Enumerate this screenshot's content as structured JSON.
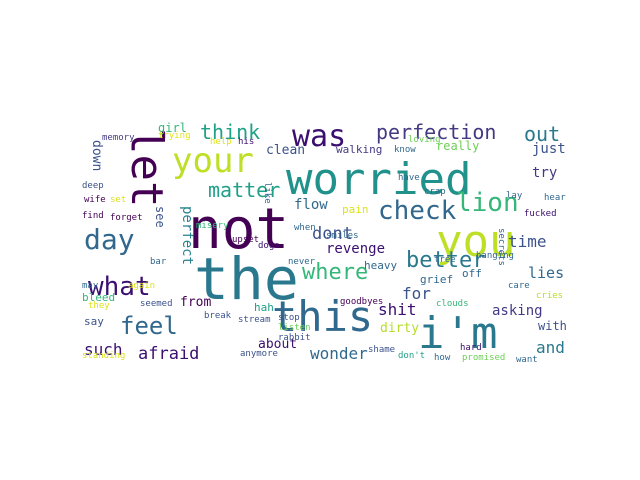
{
  "words": [
    {
      "text": "the",
      "color": "#2a788e"
    },
    {
      "text": "not",
      "color": "#440154"
    },
    {
      "text": "worried",
      "color": "#21918c"
    },
    {
      "text": "you",
      "color": "#bddf26"
    },
    {
      "text": "this",
      "color": "#31688e"
    },
    {
      "text": "i'm",
      "color": "#2a788e"
    },
    {
      "text": "your",
      "color": "#bddf26"
    },
    {
      "text": "let",
      "color": "#440154"
    },
    {
      "text": "was",
      "color": "#3b0f70"
    },
    {
      "text": "check",
      "color": "#31688e"
    },
    {
      "text": "day",
      "color": "#31688e"
    },
    {
      "text": "what",
      "color": "#3b0f70"
    },
    {
      "text": "where",
      "color": "#35b779"
    },
    {
      "text": "better",
      "color": "#2a788e"
    },
    {
      "text": "lion",
      "color": "#35b779"
    },
    {
      "text": "feel",
      "color": "#31688e"
    },
    {
      "text": "perfection",
      "color": "#443a83"
    },
    {
      "text": "think",
      "color": "#1fa187"
    },
    {
      "text": "out",
      "color": "#2a788e"
    },
    {
      "text": "matter",
      "color": "#1fa187"
    },
    {
      "text": "dont",
      "color": "#3b528b"
    },
    {
      "text": "time",
      "color": "#3b528b"
    },
    {
      "text": "shit",
      "color": "#3b0f70"
    },
    {
      "text": "afraid",
      "color": "#3b0f70"
    },
    {
      "text": "such",
      "color": "#3b0f70"
    },
    {
      "text": "wonder",
      "color": "#31688e"
    },
    {
      "text": "and",
      "color": "#2a788e"
    },
    {
      "text": "for",
      "color": "#3b528b"
    },
    {
      "text": "asking",
      "color": "#443a83"
    },
    {
      "text": "lies",
      "color": "#31688e"
    },
    {
      "text": "just",
      "color": "#3b528b"
    },
    {
      "text": "try",
      "color": "#443a83"
    },
    {
      "text": "revenge",
      "color": "#3b0f70"
    },
    {
      "text": "flow",
      "color": "#31688e"
    },
    {
      "text": "clean",
      "color": "#3b528b"
    },
    {
      "text": "from",
      "color": "#440154"
    },
    {
      "text": "about",
      "color": "#3b0f70"
    },
    {
      "text": "dirty",
      "color": "#b5de2b"
    },
    {
      "text": "with",
      "color": "#3b528b"
    },
    {
      "text": "really",
      "color": "#6ece58"
    },
    {
      "text": "walking",
      "color": "#443a83"
    },
    {
      "text": "perfect",
      "color": "#26828e"
    },
    {
      "text": "see",
      "color": "#3b528b"
    },
    {
      "text": "down",
      "color": "#3b528b"
    },
    {
      "text": "girl",
      "color": "#35b779"
    },
    {
      "text": "bleed",
      "color": "#35b779"
    },
    {
      "text": "say",
      "color": "#3b528b"
    },
    {
      "text": "pain",
      "color": "#dde318"
    },
    {
      "text": "heavy",
      "color": "#31688e"
    },
    {
      "text": "off",
      "color": "#31688e"
    },
    {
      "text": "grief",
      "color": "#31688e"
    },
    {
      "text": "hah",
      "color": "#1f9e89"
    },
    {
      "text": "memory",
      "color": "#443a83"
    },
    {
      "text": "trying",
      "color": "#dde318"
    },
    {
      "text": "help",
      "color": "#dde318"
    },
    {
      "text": "his",
      "color": "#3b0f70"
    },
    {
      "text": "loving",
      "color": "#6ece58"
    },
    {
      "text": "know",
      "color": "#31688e"
    },
    {
      "text": "deep",
      "color": "#3b528b"
    },
    {
      "text": "wife",
      "color": "#440154"
    },
    {
      "text": "set",
      "color": "#dde318"
    },
    {
      "text": "find",
      "color": "#440154"
    },
    {
      "text": "forget",
      "color": "#440154"
    },
    {
      "text": "misery",
      "color": "#35b779"
    },
    {
      "text": "upset",
      "color": "#440154"
    },
    {
      "text": "like",
      "color": "#31688e"
    },
    {
      "text": "have",
      "color": "#31688e"
    },
    {
      "text": "crap",
      "color": "#31688e"
    },
    {
      "text": "lay",
      "color": "#31688e"
    },
    {
      "text": "hear",
      "color": "#31688e"
    },
    {
      "text": "fucked",
      "color": "#3b0f70"
    },
    {
      "text": "when",
      "color": "#31688e"
    },
    {
      "text": "smiles",
      "color": "#31688e"
    },
    {
      "text": "dogs",
      "color": "#3b0f70"
    },
    {
      "text": "never",
      "color": "#31688e"
    },
    {
      "text": "bar",
      "color": "#31688e"
    },
    {
      "text": "may",
      "color": "#31688e"
    },
    {
      "text": "again",
      "color": "#dde318"
    },
    {
      "text": "they",
      "color": "#dde318"
    },
    {
      "text": "seemed",
      "color": "#3b528b"
    },
    {
      "text": "break",
      "color": "#3b528b"
    },
    {
      "text": "stream",
      "color": "#3b528b"
    },
    {
      "text": "stop",
      "color": "#3b528b"
    },
    {
      "text": "listen",
      "color": "#6ece58"
    },
    {
      "text": "rabbit",
      "color": "#3b528b"
    },
    {
      "text": "anymore",
      "color": "#3b528b"
    },
    {
      "text": "standing",
      "color": "#dde318"
    },
    {
      "text": "goodbyes",
      "color": "#440154"
    },
    {
      "text": "clouds",
      "color": "#35b779"
    },
    {
      "text": "hard",
      "color": "#3b0f70"
    },
    {
      "text": "shame",
      "color": "#3b528b"
    },
    {
      "text": "don't",
      "color": "#1fa187"
    },
    {
      "text": "how",
      "color": "#31688e"
    },
    {
      "text": "promised",
      "color": "#6ece58"
    },
    {
      "text": "want",
      "color": "#31688e"
    },
    {
      "text": "hanging",
      "color": "#31688e"
    },
    {
      "text": "secrets",
      "color": "#31688e"
    },
    {
      "text": "tree",
      "color": "#31688e"
    },
    {
      "text": "care",
      "color": "#31688e"
    },
    {
      "text": "cries",
      "color": "#b5de2b"
    }
  ]
}
